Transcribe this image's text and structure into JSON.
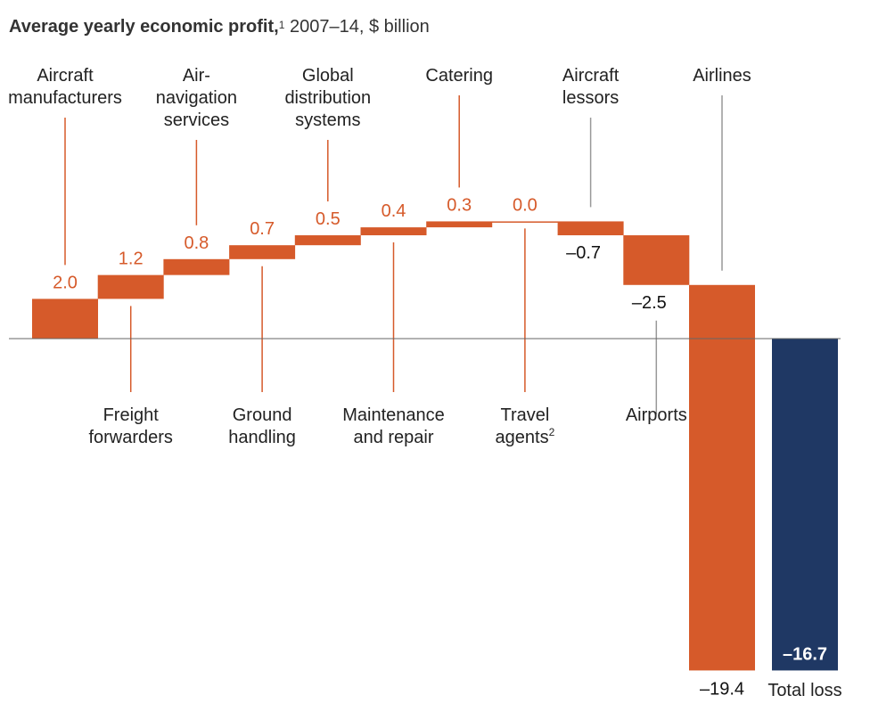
{
  "title": {
    "bold": "Average yearly economic profit,",
    "footnote": "1",
    "rest": " 2007–14, $ billion"
  },
  "colors": {
    "positive": "#D65A2A",
    "negative": "#D65A2A",
    "total": "#1F3864",
    "positive_label": "#D65A2A",
    "negative_label": "#111111",
    "leader_negative": "#999999",
    "axis": "#666666"
  },
  "chart_data": {
    "type": "bar",
    "subtype": "waterfall",
    "title": "Average yearly economic profit, 2007–14, $ billion",
    "xlabel": "",
    "ylabel": "$ billion",
    "grid": false,
    "categories": [
      "Aircraft manufacturers",
      "Freight forwarders",
      "Air-navigation services",
      "Ground handling",
      "Global distribution systems",
      "Maintenance and repair",
      "Catering",
      "Travel agents",
      "Aircraft lessors",
      "Airports",
      "Airlines",
      "Total loss"
    ],
    "values": [
      2.0,
      1.2,
      0.8,
      0.7,
      0.5,
      0.4,
      0.3,
      0.0,
      -0.7,
      -2.5,
      -19.4,
      -16.7
    ],
    "value_labels": [
      "2.0",
      "1.2",
      "0.8",
      "0.7",
      "0.5",
      "0.4",
      "0.3",
      "0.0",
      "–0.7",
      "–2.5",
      "–19.4",
      "–16.7"
    ],
    "is_total": [
      false,
      false,
      false,
      false,
      false,
      false,
      false,
      false,
      false,
      false,
      false,
      true
    ],
    "category_labels": [
      {
        "lines": [
          "Aircraft",
          "manufacturers"
        ],
        "position": "above"
      },
      {
        "lines": [
          "Freight",
          "forwarders"
        ],
        "position": "below"
      },
      {
        "lines": [
          "Air-",
          "navigation",
          "services"
        ],
        "position": "above"
      },
      {
        "lines": [
          "Ground",
          "handling"
        ],
        "position": "below"
      },
      {
        "lines": [
          "Global",
          "distribution",
          "systems"
        ],
        "position": "above"
      },
      {
        "lines": [
          "Maintenance",
          "and repair"
        ],
        "position": "below"
      },
      {
        "lines": [
          "Catering"
        ],
        "position": "above"
      },
      {
        "lines": [
          "Travel",
          "agents"
        ],
        "position": "below",
        "footnote": "2"
      },
      {
        "lines": [
          "Aircraft",
          "lessors"
        ],
        "position": "above"
      },
      {
        "lines": [
          "Airports"
        ],
        "position": "below"
      },
      {
        "lines": [
          "Airlines"
        ],
        "position": "above"
      },
      {
        "lines": [
          "Total loss"
        ],
        "position": "bottom"
      }
    ],
    "ylim": [
      -16.7,
      5.9
    ]
  }
}
